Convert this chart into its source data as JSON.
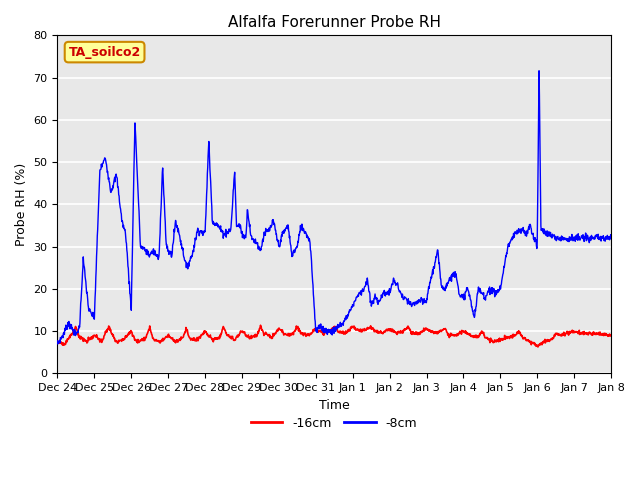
{
  "title": "Alfalfa Forerunner Probe RH",
  "xlabel": "Time",
  "ylabel": "Probe RH (%)",
  "ylim": [
    0,
    80
  ],
  "yticks": [
    0,
    10,
    20,
    30,
    40,
    50,
    60,
    70,
    80
  ],
  "annotation_text": "TA_soilco2",
  "annotation_bg": "#FFFF99",
  "annotation_border": "#CC8800",
  "bg_color": "#E8E8E8",
  "line_red_color": "#FF0000",
  "line_blue_color": "#0000FF",
  "legend_labels": [
    "-16cm",
    "-8cm"
  ],
  "xtick_labels": [
    "Dec 24",
    "Dec 25",
    "Dec 26",
    "Dec 27",
    "Dec 28",
    "Dec 29",
    "Dec 30",
    "Dec 31",
    "Jan 1",
    "Jan 2",
    "Jan 3",
    "Jan 4",
    "Jan 5",
    "Jan 6",
    "Jan 7",
    "Jan 8"
  ],
  "title_fontsize": 11,
  "axis_fontsize": 9,
  "tick_fontsize": 8
}
